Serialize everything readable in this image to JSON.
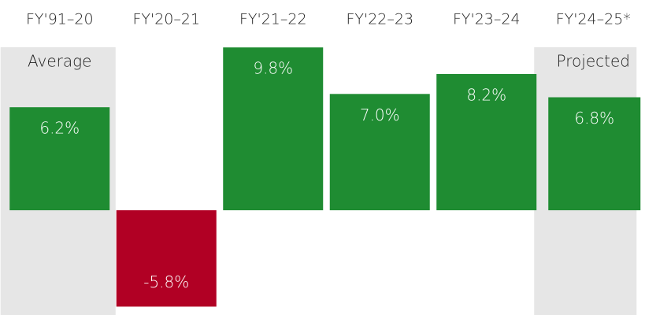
{
  "chart_data": {
    "type": "bar",
    "categories": [
      "FY'91–20",
      "FY'20–21",
      "FY'21–22",
      "FY'22–23",
      "FY'23–24",
      "FY'24–25*"
    ],
    "values": [
      6.2,
      -5.8,
      9.8,
      7.0,
      8.2,
      6.8
    ],
    "value_labels": [
      "6.2%",
      "-5.8%",
      "9.8%",
      "7.0%",
      "8.2%",
      "6.8%"
    ],
    "colors": {
      "positive": "#1f8c32",
      "negative": "#b10024",
      "highlight": "#e6e6e6"
    },
    "annotations": [
      "Average",
      "Projected"
    ]
  }
}
